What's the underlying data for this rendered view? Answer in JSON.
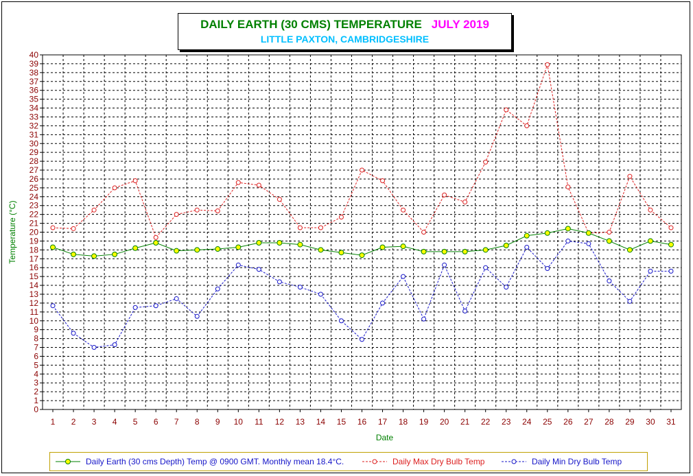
{
  "title": "DAILY EARTH (30 CMS) TEMPERATURE",
  "title_month": "JULY 2019",
  "subtitle": "LITTLE PAXTON, CAMBRIDGESHIRE",
  "chart_data": {
    "type": "line",
    "xlabel": "Date",
    "ylabel": "Temperature (°C)",
    "ylim": [
      0,
      40
    ],
    "grid": true,
    "legend_position": "bottom",
    "x": [
      1,
      2,
      3,
      4,
      5,
      6,
      7,
      8,
      9,
      10,
      11,
      12,
      13,
      14,
      15,
      16,
      17,
      18,
      19,
      20,
      21,
      22,
      23,
      24,
      25,
      26,
      27,
      28,
      29,
      30,
      31
    ],
    "series": [
      {
        "name": "Daily Earth (30 cms Depth) Temp @ 0900 GMT. Monthly mean 18.4°C.",
        "color": "#008000",
        "marker_fill": "#ffff00",
        "style": "solid",
        "values": [
          18.3,
          17.5,
          17.3,
          17.5,
          18.2,
          18.8,
          17.9,
          18.0,
          18.1,
          18.3,
          18.8,
          18.8,
          18.6,
          18.0,
          17.7,
          17.4,
          18.3,
          18.4,
          17.8,
          17.8,
          17.8,
          18.0,
          18.5,
          19.6,
          19.9,
          20.4,
          19.9,
          19.0,
          18.0,
          19.0,
          18.6
        ]
      },
      {
        "name": "Daily Max Dry Bulb Temp",
        "color": "#dc1e1e",
        "marker_fill": "none",
        "style": "dashed",
        "values": [
          20.5,
          20.4,
          22.5,
          25.0,
          25.8,
          19.4,
          22.0,
          22.5,
          22.4,
          25.6,
          25.3,
          23.7,
          20.5,
          20.5,
          21.7,
          27.0,
          25.8,
          22.5,
          20.0,
          24.2,
          23.4,
          27.9,
          33.8,
          32.0,
          38.9,
          25.1,
          19.9,
          20.0,
          26.3,
          22.5,
          20.5
        ]
      },
      {
        "name": "Daily Min Dry Bulb Temp",
        "color": "#1414c8",
        "marker_fill": "none",
        "style": "dashed",
        "values": [
          11.7,
          8.6,
          7.0,
          7.3,
          11.5,
          11.7,
          12.5,
          10.5,
          13.6,
          16.3,
          15.8,
          14.4,
          13.8,
          13.0,
          10.0,
          7.9,
          12.0,
          15.0,
          10.2,
          16.3,
          11.1,
          16.0,
          13.8,
          18.3,
          15.9,
          19.0,
          18.7,
          14.5,
          12.2,
          15.6,
          15.6
        ]
      }
    ]
  }
}
